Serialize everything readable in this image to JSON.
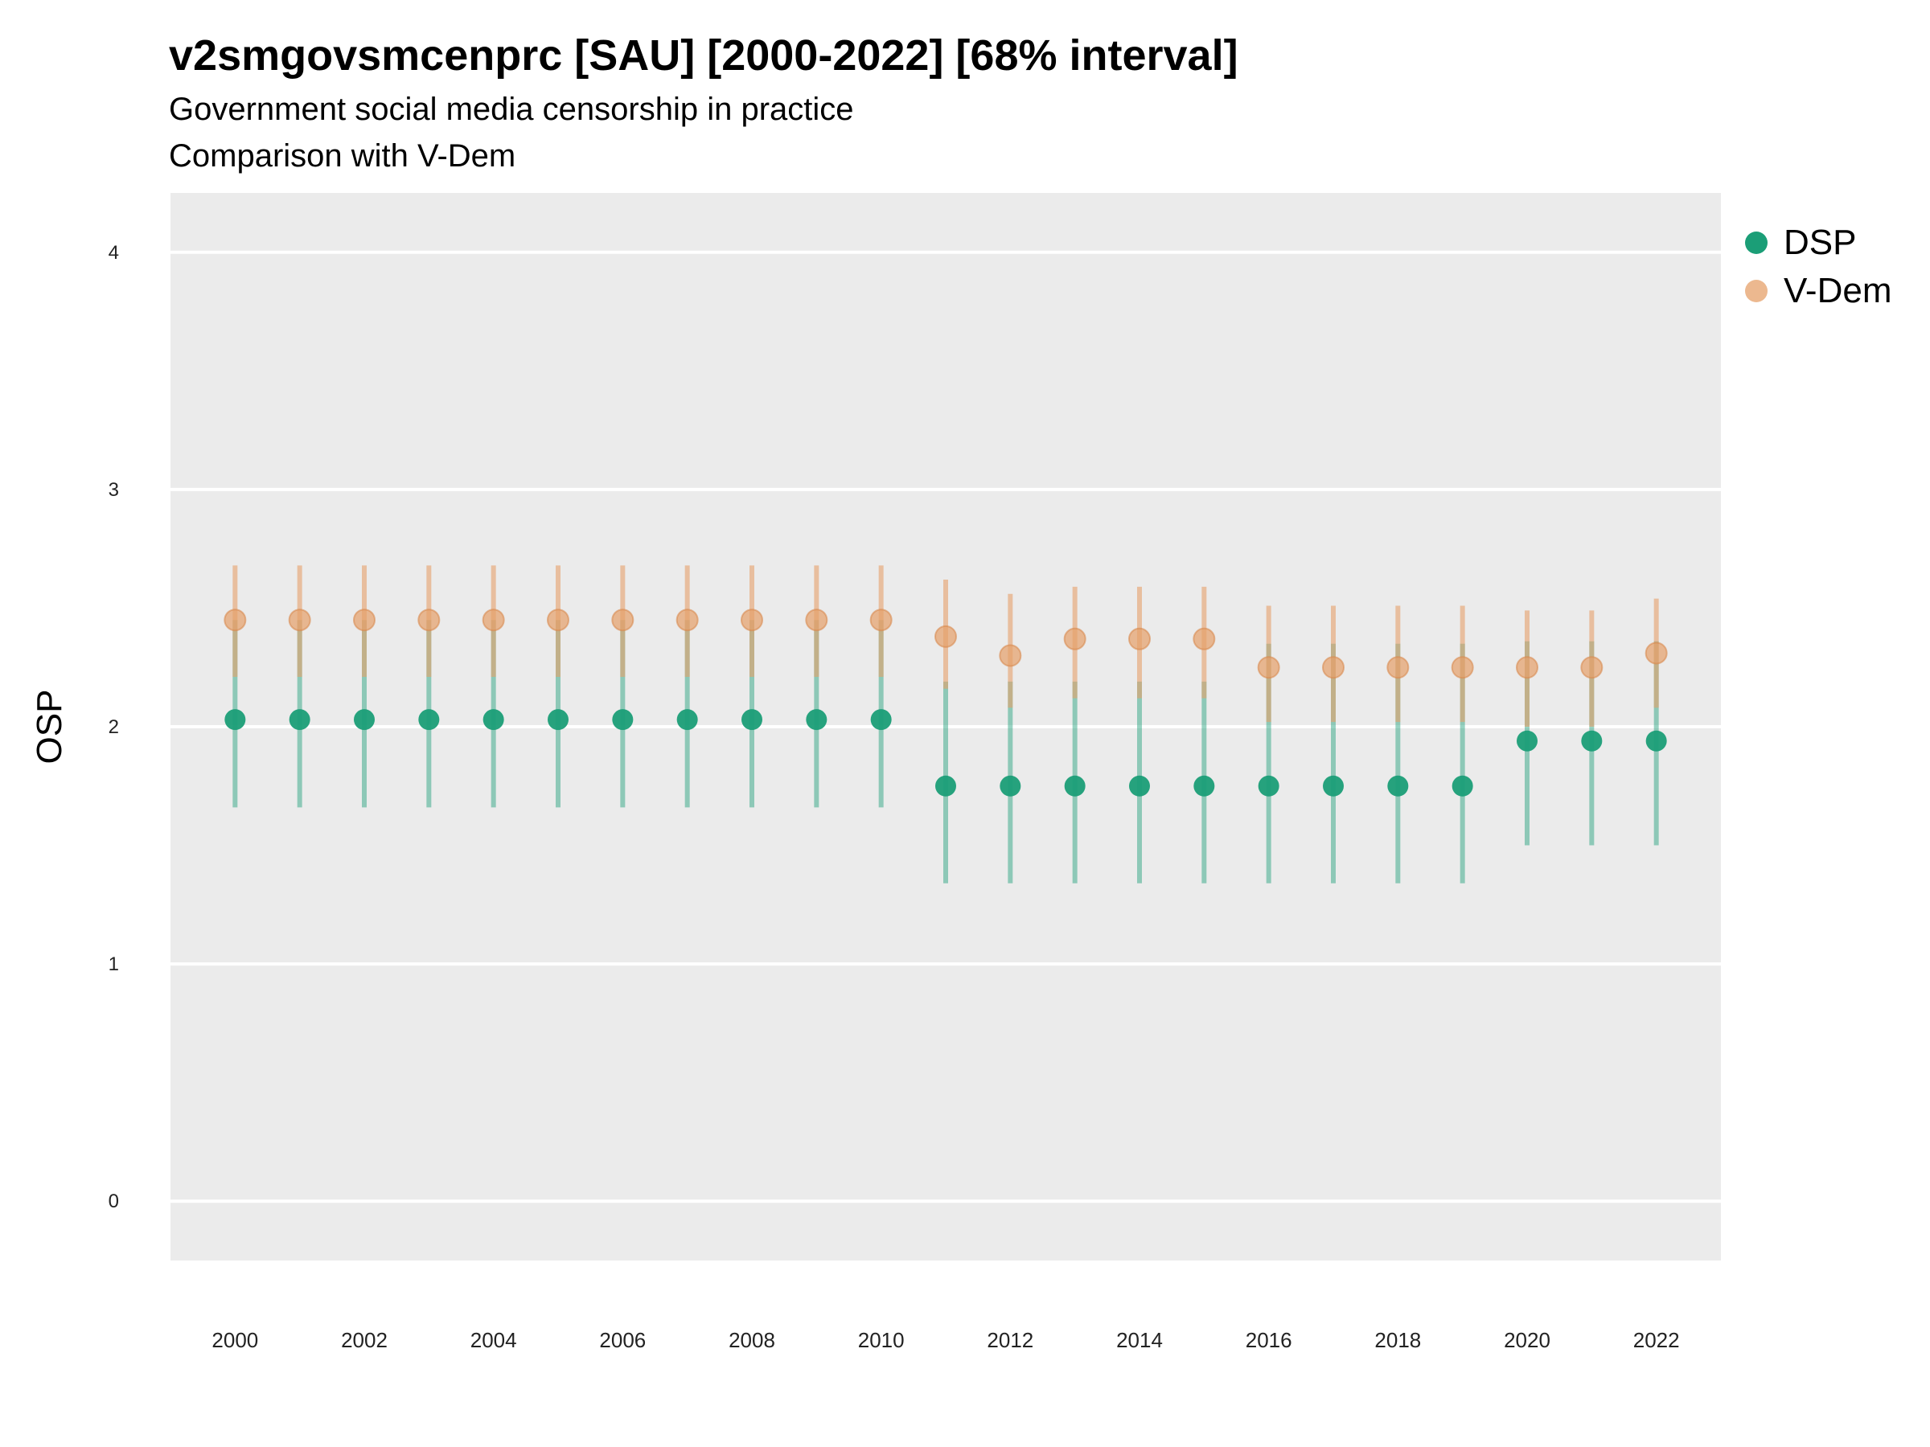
{
  "header": {
    "title": "v2smgovsmcenprc [SAU] [2000-2022] [68% interval]",
    "subtitle": "Government social media censorship in practice",
    "caption": "Comparison with V-Dem"
  },
  "legend": [
    {
      "label": "DSP",
      "color": "#1b9e77"
    },
    {
      "label": "V-Dem",
      "color": "#e6a06a"
    }
  ],
  "chart_data": {
    "type": "scatter",
    "ylabel": "OSP",
    "xlabel": "",
    "ylim": [
      -0.25,
      4.25
    ],
    "xlim": [
      1999.0,
      2023.0
    ],
    "y_ticks": [
      0,
      1,
      2,
      3,
      4
    ],
    "x_ticks": [
      2000,
      2002,
      2004,
      2006,
      2008,
      2010,
      2012,
      2014,
      2016,
      2018,
      2020,
      2022
    ],
    "grid": "horizontal",
    "legend_position": "right",
    "panel_color": "#ebebeb",
    "series": [
      {
        "name": "DSP",
        "color": "#1b9e77",
        "x": [
          2000,
          2001,
          2002,
          2003,
          2004,
          2005,
          2006,
          2007,
          2008,
          2009,
          2010,
          2011,
          2012,
          2013,
          2014,
          2015,
          2016,
          2017,
          2018,
          2019,
          2020,
          2021,
          2022
        ],
        "y": [
          2.03,
          2.03,
          2.03,
          2.03,
          2.03,
          2.03,
          2.03,
          2.03,
          2.03,
          2.03,
          2.03,
          1.75,
          1.75,
          1.75,
          1.75,
          1.75,
          1.75,
          1.75,
          1.75,
          1.75,
          1.94,
          1.94,
          1.94
        ],
        "lower": [
          1.66,
          1.66,
          1.66,
          1.66,
          1.66,
          1.66,
          1.66,
          1.66,
          1.66,
          1.66,
          1.66,
          1.34,
          1.34,
          1.34,
          1.34,
          1.34,
          1.34,
          1.34,
          1.34,
          1.34,
          1.5,
          1.5,
          1.5
        ],
        "upper": [
          2.45,
          2.45,
          2.45,
          2.45,
          2.45,
          2.45,
          2.45,
          2.45,
          2.45,
          2.45,
          2.45,
          2.19,
          2.19,
          2.19,
          2.19,
          2.19,
          2.35,
          2.35,
          2.35,
          2.35,
          2.36,
          2.36,
          2.36
        ]
      },
      {
        "name": "V-Dem",
        "color": "#e6a06a",
        "x": [
          2000,
          2001,
          2002,
          2003,
          2004,
          2005,
          2006,
          2007,
          2008,
          2009,
          2010,
          2011,
          2012,
          2013,
          2014,
          2015,
          2016,
          2017,
          2018,
          2019,
          2020,
          2021,
          2022
        ],
        "y": [
          2.45,
          2.45,
          2.45,
          2.45,
          2.45,
          2.45,
          2.45,
          2.45,
          2.45,
          2.45,
          2.45,
          2.38,
          2.3,
          2.37,
          2.37,
          2.37,
          2.25,
          2.25,
          2.25,
          2.25,
          2.25,
          2.25,
          2.31
        ],
        "lower": [
          2.21,
          2.21,
          2.21,
          2.21,
          2.21,
          2.21,
          2.21,
          2.21,
          2.21,
          2.21,
          2.21,
          2.16,
          2.08,
          2.12,
          2.12,
          2.12,
          2.02,
          2.02,
          2.02,
          2.02,
          2.0,
          2.0,
          2.08
        ],
        "upper": [
          2.68,
          2.68,
          2.68,
          2.68,
          2.68,
          2.68,
          2.68,
          2.68,
          2.68,
          2.68,
          2.68,
          2.62,
          2.56,
          2.59,
          2.59,
          2.59,
          2.51,
          2.51,
          2.51,
          2.51,
          2.49,
          2.49,
          2.54
        ]
      }
    ]
  }
}
